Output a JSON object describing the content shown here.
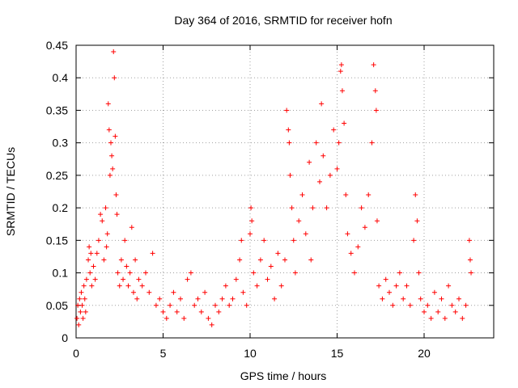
{
  "chart_data": {
    "type": "scatter",
    "title": "Day 364 of 2016, SRMTID for receiver hofn",
    "xlabel": "GPS time / hours",
    "ylabel": "SRMTID / TECUs",
    "xlim": [
      0,
      24
    ],
    "ylim": [
      0,
      0.45
    ],
    "xticks": [
      0,
      5,
      10,
      15,
      20
    ],
    "yticks": [
      0,
      0.05,
      0.1,
      0.15,
      0.2,
      0.25,
      0.3,
      0.35,
      0.4,
      0.45
    ],
    "grid": true,
    "marker": "+",
    "series": [
      {
        "name": "SRMTID",
        "color": "#ff0000",
        "points": [
          [
            0.05,
            0.03
          ],
          [
            0.1,
            0.05
          ],
          [
            0.15,
            0.02
          ],
          [
            0.2,
            0.06
          ],
          [
            0.25,
            0.04
          ],
          [
            0.3,
            0.07
          ],
          [
            0.35,
            0.05
          ],
          [
            0.4,
            0.03
          ],
          [
            0.45,
            0.08
          ],
          [
            0.5,
            0.06
          ],
          [
            0.55,
            0.04
          ],
          [
            0.6,
            0.09
          ],
          [
            0.7,
            0.12
          ],
          [
            0.75,
            0.14
          ],
          [
            0.8,
            0.1
          ],
          [
            0.85,
            0.13
          ],
          [
            0.9,
            0.08
          ],
          [
            1.0,
            0.11
          ],
          [
            1.1,
            0.09
          ],
          [
            1.2,
            0.13
          ],
          [
            1.3,
            0.15
          ],
          [
            1.4,
            0.19
          ],
          [
            1.5,
            0.18
          ],
          [
            1.6,
            0.12
          ],
          [
            1.7,
            0.2
          ],
          [
            1.75,
            0.14
          ],
          [
            1.8,
            0.16
          ],
          [
            1.85,
            0.36
          ],
          [
            1.9,
            0.32
          ],
          [
            1.95,
            0.25
          ],
          [
            2.0,
            0.3
          ],
          [
            2.05,
            0.28
          ],
          [
            2.1,
            0.26
          ],
          [
            2.15,
            0.44
          ],
          [
            2.2,
            0.4
          ],
          [
            2.25,
            0.31
          ],
          [
            2.3,
            0.22
          ],
          [
            2.35,
            0.19
          ],
          [
            2.4,
            0.1
          ],
          [
            2.5,
            0.08
          ],
          [
            2.6,
            0.12
          ],
          [
            2.7,
            0.09
          ],
          [
            2.8,
            0.15
          ],
          [
            2.9,
            0.11
          ],
          [
            3.0,
            0.08
          ],
          [
            3.1,
            0.1
          ],
          [
            3.2,
            0.17
          ],
          [
            3.3,
            0.07
          ],
          [
            3.4,
            0.12
          ],
          [
            3.5,
            0.06
          ],
          [
            3.6,
            0.09
          ],
          [
            3.8,
            0.08
          ],
          [
            4.0,
            0.1
          ],
          [
            4.2,
            0.07
          ],
          [
            4.4,
            0.13
          ],
          [
            4.6,
            0.05
          ],
          [
            4.8,
            0.06
          ],
          [
            5.0,
            0.04
          ],
          [
            5.2,
            0.03
          ],
          [
            5.4,
            0.05
          ],
          [
            5.6,
            0.07
          ],
          [
            5.8,
            0.04
          ],
          [
            6.0,
            0.06
          ],
          [
            6.2,
            0.03
          ],
          [
            6.4,
            0.09
          ],
          [
            6.6,
            0.1
          ],
          [
            6.8,
            0.05
          ],
          [
            7.0,
            0.06
          ],
          [
            7.2,
            0.04
          ],
          [
            7.4,
            0.07
          ],
          [
            7.6,
            0.03
          ],
          [
            7.8,
            0.02
          ],
          [
            8.0,
            0.05
          ],
          [
            8.2,
            0.04
          ],
          [
            8.4,
            0.06
          ],
          [
            8.6,
            0.08
          ],
          [
            8.8,
            0.05
          ],
          [
            9.0,
            0.06
          ],
          [
            9.2,
            0.09
          ],
          [
            9.4,
            0.12
          ],
          [
            9.5,
            0.15
          ],
          [
            9.6,
            0.07
          ],
          [
            9.8,
            0.05
          ],
          [
            10.0,
            0.16
          ],
          [
            10.05,
            0.2
          ],
          [
            10.1,
            0.18
          ],
          [
            10.2,
            0.1
          ],
          [
            10.4,
            0.08
          ],
          [
            10.6,
            0.12
          ],
          [
            10.8,
            0.15
          ],
          [
            11.0,
            0.09
          ],
          [
            11.2,
            0.11
          ],
          [
            11.4,
            0.06
          ],
          [
            11.6,
            0.13
          ],
          [
            11.8,
            0.08
          ],
          [
            12.0,
            0.12
          ],
          [
            12.1,
            0.35
          ],
          [
            12.2,
            0.32
          ],
          [
            12.25,
            0.3
          ],
          [
            12.3,
            0.25
          ],
          [
            12.4,
            0.2
          ],
          [
            12.5,
            0.15
          ],
          [
            12.6,
            0.1
          ],
          [
            12.8,
            0.18
          ],
          [
            13.0,
            0.22
          ],
          [
            13.2,
            0.16
          ],
          [
            13.4,
            0.27
          ],
          [
            13.5,
            0.12
          ],
          [
            13.6,
            0.2
          ],
          [
            13.8,
            0.3
          ],
          [
            14.0,
            0.24
          ],
          [
            14.1,
            0.36
          ],
          [
            14.2,
            0.28
          ],
          [
            14.4,
            0.2
          ],
          [
            14.6,
            0.25
          ],
          [
            14.8,
            0.32
          ],
          [
            15.0,
            0.26
          ],
          [
            15.1,
            0.3
          ],
          [
            15.2,
            0.41
          ],
          [
            15.25,
            0.42
          ],
          [
            15.3,
            0.38
          ],
          [
            15.4,
            0.33
          ],
          [
            15.5,
            0.22
          ],
          [
            15.6,
            0.16
          ],
          [
            15.8,
            0.13
          ],
          [
            16.0,
            0.1
          ],
          [
            16.2,
            0.14
          ],
          [
            16.4,
            0.2
          ],
          [
            16.6,
            0.17
          ],
          [
            16.8,
            0.22
          ],
          [
            17.0,
            0.3
          ],
          [
            17.1,
            0.42
          ],
          [
            17.2,
            0.38
          ],
          [
            17.25,
            0.35
          ],
          [
            17.3,
            0.18
          ],
          [
            17.4,
            0.08
          ],
          [
            17.6,
            0.06
          ],
          [
            17.8,
            0.09
          ],
          [
            18.0,
            0.07
          ],
          [
            18.2,
            0.05
          ],
          [
            18.4,
            0.08
          ],
          [
            18.6,
            0.1
          ],
          [
            18.8,
            0.06
          ],
          [
            19.0,
            0.08
          ],
          [
            19.2,
            0.05
          ],
          [
            19.4,
            0.15
          ],
          [
            19.5,
            0.22
          ],
          [
            19.6,
            0.18
          ],
          [
            19.7,
            0.1
          ],
          [
            19.8,
            0.06
          ],
          [
            20.0,
            0.04
          ],
          [
            20.2,
            0.05
          ],
          [
            20.4,
            0.03
          ],
          [
            20.6,
            0.07
          ],
          [
            20.8,
            0.04
          ],
          [
            21.0,
            0.06
          ],
          [
            21.2,
            0.03
          ],
          [
            21.4,
            0.08
          ],
          [
            21.6,
            0.05
          ],
          [
            21.8,
            0.04
          ],
          [
            22.0,
            0.06
          ],
          [
            22.2,
            0.03
          ],
          [
            22.4,
            0.05
          ],
          [
            22.6,
            0.15
          ],
          [
            22.65,
            0.12
          ],
          [
            22.7,
            0.1
          ]
        ]
      }
    ]
  }
}
